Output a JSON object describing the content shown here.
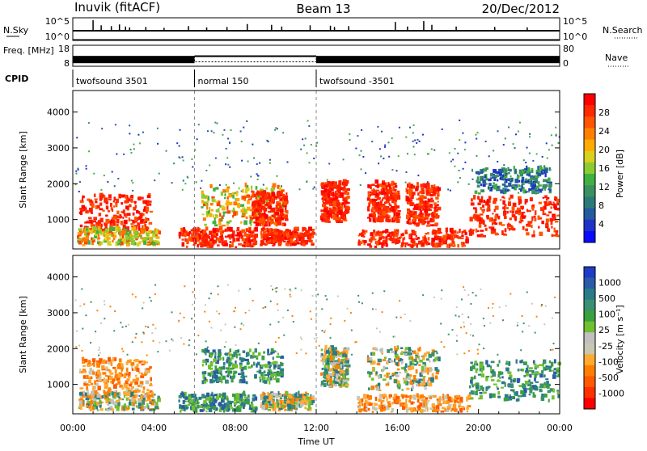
{
  "header": {
    "station": "Inuvik (fitACF)",
    "beam": "Beam 13",
    "date": "20/Dec/2012"
  },
  "chart_data": [
    {
      "id": "nsky",
      "type": "line",
      "ylabel": "N.Sky",
      "ylabel_right": "N.Search",
      "yticks": [
        "10^5",
        "10^0"
      ],
      "yticks_right": [
        "10^5",
        "10^0"
      ],
      "baseline": 2.3,
      "spikes": [
        {
          "t": 1.0,
          "v": 4.8
        },
        {
          "t": 1.4,
          "v": 3.6
        },
        {
          "t": 1.9,
          "v": 3.4
        },
        {
          "t": 2.3,
          "v": 3.8
        },
        {
          "t": 2.6,
          "v": 3.3
        },
        {
          "t": 2.8,
          "v": 3.1
        },
        {
          "t": 3.6,
          "v": 3.2
        },
        {
          "t": 4.5,
          "v": 3.0
        },
        {
          "t": 5.7,
          "v": 3.4
        },
        {
          "t": 6.6,
          "v": 3.1
        },
        {
          "t": 7.6,
          "v": 3.2
        },
        {
          "t": 8.6,
          "v": 3.9
        },
        {
          "t": 9.8,
          "v": 3.7
        },
        {
          "t": 10.3,
          "v": 3.3
        },
        {
          "t": 11.7,
          "v": 3.6
        },
        {
          "t": 12.7,
          "v": 3.5
        },
        {
          "t": 12.9,
          "v": 3.2
        },
        {
          "t": 13.6,
          "v": 3.4
        },
        {
          "t": 15.9,
          "v": 4.4
        },
        {
          "t": 16.5,
          "v": 3.3
        },
        {
          "t": 17.3,
          "v": 4.6
        },
        {
          "t": 17.7,
          "v": 3.7
        },
        {
          "t": 18.9,
          "v": 3.3
        },
        {
          "t": 20.8,
          "v": 3.2
        },
        {
          "t": 22.4,
          "v": 3.1
        }
      ]
    },
    {
      "id": "freq",
      "type": "line",
      "ylabel": "Freq. [MHz]",
      "ylabel_right": "Nave",
      "yticks": [
        "18",
        "8"
      ],
      "yticks_right": [
        "80",
        "0"
      ],
      "freq_segments": [
        {
          "t0": 0,
          "t1": 6,
          "v": 11.2
        },
        {
          "t0": 6,
          "t1": 12,
          "v": 12.8
        },
        {
          "t0": 12,
          "t1": 24,
          "v": 11.2
        }
      ],
      "nave_segments": [
        {
          "t0": 6,
          "t1": 12,
          "v": 17
        }
      ]
    },
    {
      "id": "cpid",
      "type": "table",
      "label": "CPID",
      "segments": [
        {
          "t0": 0,
          "t1": 6,
          "name": "twofsound 3501"
        },
        {
          "t0": 6,
          "t1": 12,
          "name": "normal 150"
        },
        {
          "t0": 12,
          "t1": 24,
          "name": "twofsound -3501"
        }
      ]
    },
    {
      "id": "power",
      "type": "heatmap",
      "ylabel": "Slant Range [km]",
      "yrange": [
        180,
        4600
      ],
      "yticks": [
        1000,
        2000,
        3000,
        4000
      ],
      "colorbar": {
        "label": "Power [dB]",
        "ticks": [
          "28",
          "24",
          "20",
          "16",
          "12",
          "8",
          "4"
        ],
        "colors": [
          "#ff0000",
          "#ff2a00",
          "#ff5500",
          "#ff8000",
          "#ffaa00",
          "#d9d020",
          "#8ccc30",
          "#40b040",
          "#3c9060",
          "#2c7a78",
          "#245aa0",
          "#1e32c8",
          "#0a0aff"
        ]
      },
      "blobs": [
        {
          "t0": 0.3,
          "t1": 3.8,
          "r0": 600,
          "r1": 1650,
          "level": "high"
        },
        {
          "t0": 0.2,
          "t1": 4.2,
          "r0": 250,
          "r1": 700,
          "level": "mid"
        },
        {
          "t0": 5.2,
          "t1": 9.0,
          "r0": 200,
          "r1": 700,
          "level": "high"
        },
        {
          "t0": 6.3,
          "t1": 10.3,
          "r0": 800,
          "r1": 1900,
          "level": "mid"
        },
        {
          "t0": 8.8,
          "t1": 10.5,
          "r0": 800,
          "r1": 1700,
          "level": "high"
        },
        {
          "t0": 9.2,
          "t1": 11.8,
          "r0": 250,
          "r1": 700,
          "level": "high"
        },
        {
          "t0": 12.2,
          "t1": 13.5,
          "r0": 900,
          "r1": 2000,
          "level": "high"
        },
        {
          "t0": 14.5,
          "t1": 16.0,
          "r0": 900,
          "r1": 2000,
          "level": "high"
        },
        {
          "t0": 16.4,
          "t1": 18.0,
          "r0": 800,
          "r1": 1950,
          "level": "high"
        },
        {
          "t0": 14.0,
          "t1": 19.5,
          "r0": 200,
          "r1": 650,
          "level": "high"
        },
        {
          "t0": 19.5,
          "t1": 23.9,
          "r0": 500,
          "r1": 1600,
          "level": "high"
        },
        {
          "t0": 19.8,
          "t1": 23.5,
          "r0": 1700,
          "r1": 2400,
          "level": "low"
        }
      ]
    },
    {
      "id": "velocity",
      "type": "heatmap",
      "xlabel": "Time UT",
      "ylabel": "Slant Range [km]",
      "yrange": [
        180,
        4600
      ],
      "yticks": [
        1000,
        2000,
        3000,
        4000
      ],
      "xticks": [
        "00:00",
        "04:00",
        "08:00",
        "12:00",
        "16:00",
        "20:00",
        "00:00"
      ],
      "colorbar": {
        "label": "Velocity [m s⁻¹]",
        "ticks": [
          "1000",
          "500",
          "100",
          "25",
          "-25",
          "-100",
          "-500",
          "-1000"
        ],
        "colors": [
          "#1e3cc8",
          "#2a5aa8",
          "#2a7a88",
          "#3a9070",
          "#3aa040",
          "#70c030",
          "#c0c0c0",
          "#c8c8b0",
          "#ffaa30",
          "#ff8000",
          "#ff5a00",
          "#ff3000",
          "#ff0000"
        ]
      },
      "blobs": [
        {
          "t0": 0.3,
          "t1": 3.8,
          "r0": 600,
          "r1": 1650,
          "level": "neg"
        },
        {
          "t0": 0.2,
          "t1": 4.2,
          "r0": 250,
          "r1": 700,
          "level": "mix"
        },
        {
          "t0": 5.2,
          "t1": 9.0,
          "r0": 200,
          "r1": 700,
          "level": "pos"
        },
        {
          "t0": 6.3,
          "t1": 10.3,
          "r0": 1000,
          "r1": 1900,
          "level": "pos"
        },
        {
          "t0": 9.2,
          "t1": 11.8,
          "r0": 250,
          "r1": 700,
          "level": "mix"
        },
        {
          "t0": 12.2,
          "t1": 13.5,
          "r0": 900,
          "r1": 2000,
          "level": "mix"
        },
        {
          "t0": 14.5,
          "t1": 18.0,
          "r0": 800,
          "r1": 2000,
          "level": "mix"
        },
        {
          "t0": 14.0,
          "t1": 19.5,
          "r0": 200,
          "r1": 650,
          "level": "neg"
        },
        {
          "t0": 19.5,
          "t1": 23.9,
          "r0": 500,
          "r1": 1600,
          "level": "pos"
        }
      ]
    }
  ]
}
